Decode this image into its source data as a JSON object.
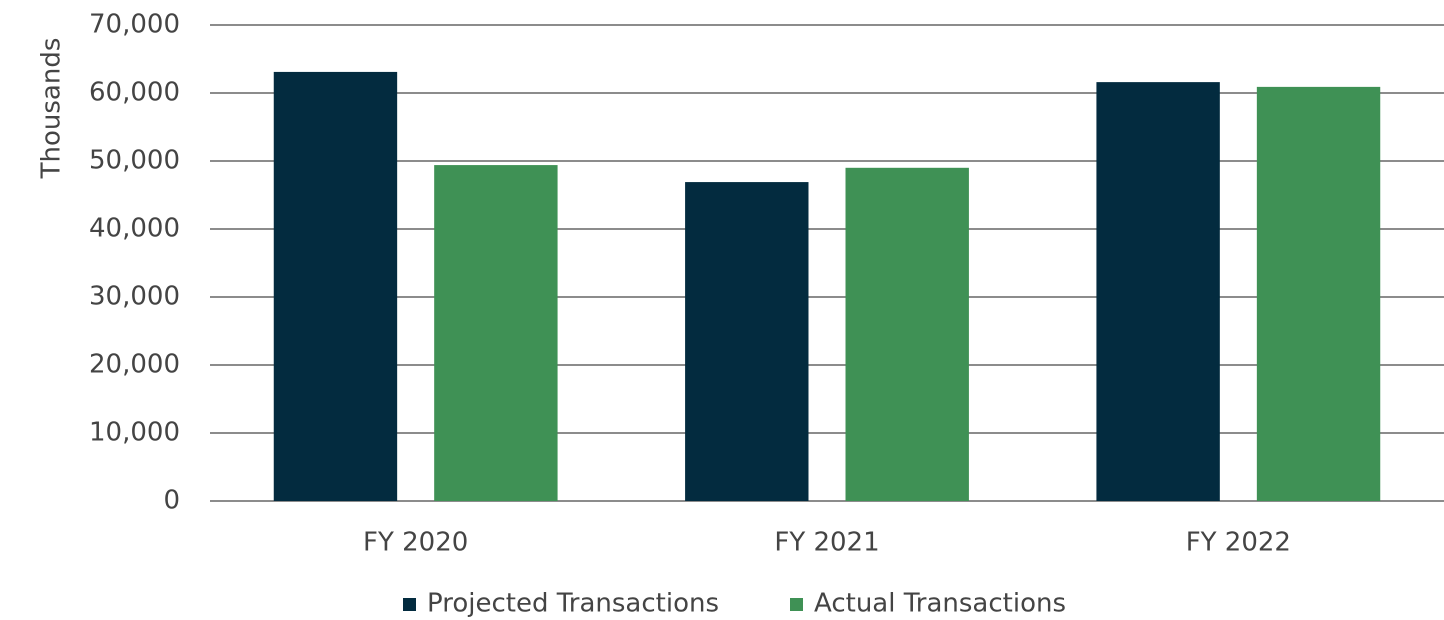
{
  "chart_data": {
    "type": "bar",
    "y_axis_label": "Thousands",
    "categories": [
      "FY 2020",
      "FY 2021",
      "FY 2022"
    ],
    "series": [
      {
        "name": "Projected Transactions",
        "color": "#032b3f",
        "values": [
          63100,
          46900,
          61600
        ]
      },
      {
        "name": "Actual Transactions",
        "color": "#3f9155",
        "values": [
          49400,
          49000,
          60900
        ]
      }
    ],
    "ylim": [
      0,
      70000
    ],
    "yticks": [
      0,
      {
        "value": 10000,
        "label": "10,000"
      },
      {
        "value": 20000,
        "label": "20,000"
      },
      {
        "value": 30000,
        "label": "30,000"
      },
      {
        "value": 40000,
        "label": "40,000"
      },
      {
        "value": 50000,
        "label": "50,000"
      },
      {
        "value": 60000,
        "label": "60,000"
      },
      {
        "value": 70000,
        "label": "70,000"
      }
    ],
    "grid": true,
    "legend": "bottom"
  }
}
